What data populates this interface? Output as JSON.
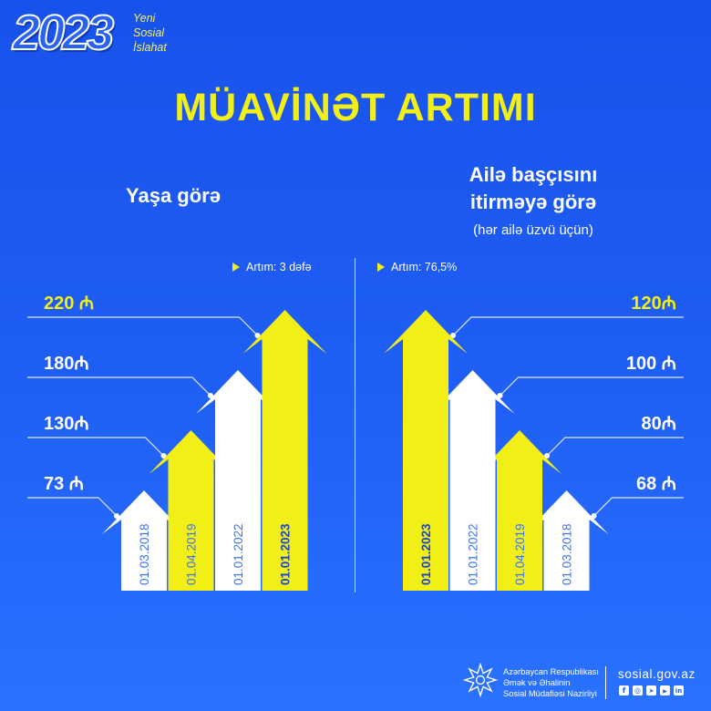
{
  "brand": {
    "year": "2023",
    "tagline": [
      "Yeni",
      "Sosial",
      "İslahat"
    ]
  },
  "title": "MÜAVİNƏT ARTIMI",
  "colors": {
    "accent": "#f2ef17",
    "bar_white": "#ffffff",
    "date_text": "#3b74f2",
    "date_highlight": "#1544d6",
    "leader_line": "#ffffff"
  },
  "chart_data": [
    {
      "type": "bar",
      "title_lines": [
        "Yaşa görə"
      ],
      "annotation": "Artım: 3 dəfə",
      "categories": [
        "01.03.2018",
        "01.04.2019",
        "01.01.2022",
        "01.01.2023"
      ],
      "values": [
        73,
        130,
        180,
        220
      ],
      "value_labels": [
        "73 ₼",
        "130₼",
        "180₼",
        "220 ₼"
      ],
      "bar_colors": [
        "#ffffff",
        "#f2ef17",
        "#ffffff",
        "#f2ef17"
      ]
    },
    {
      "type": "bar",
      "title_lines": [
        "Ailə başçısını",
        "itirməyə görə"
      ],
      "subtitle": "(hər ailə üzvü üçün)",
      "annotation": "Artım: 76,5%",
      "categories": [
        "01.01.2023",
        "01.01.2022",
        "01.04.2019",
        "01.03.2018"
      ],
      "values": [
        120,
        100,
        80,
        68
      ],
      "value_labels": [
        "120₼",
        "100 ₼",
        "80₼",
        "68 ₼"
      ],
      "bar_colors": [
        "#f2ef17",
        "#ffffff",
        "#f2ef17",
        "#ffffff"
      ]
    }
  ],
  "footer": {
    "ministry_name": [
      "Azərbaycan Respublikası",
      "Əmək və Əhalinin",
      "Sosial Müdafiəsi Nazirliyi"
    ],
    "website": "sosial.gov.az",
    "social_icons": [
      "facebook-icon",
      "instagram-icon",
      "telegram-icon",
      "youtube-icon",
      "linkedin-icon"
    ]
  }
}
